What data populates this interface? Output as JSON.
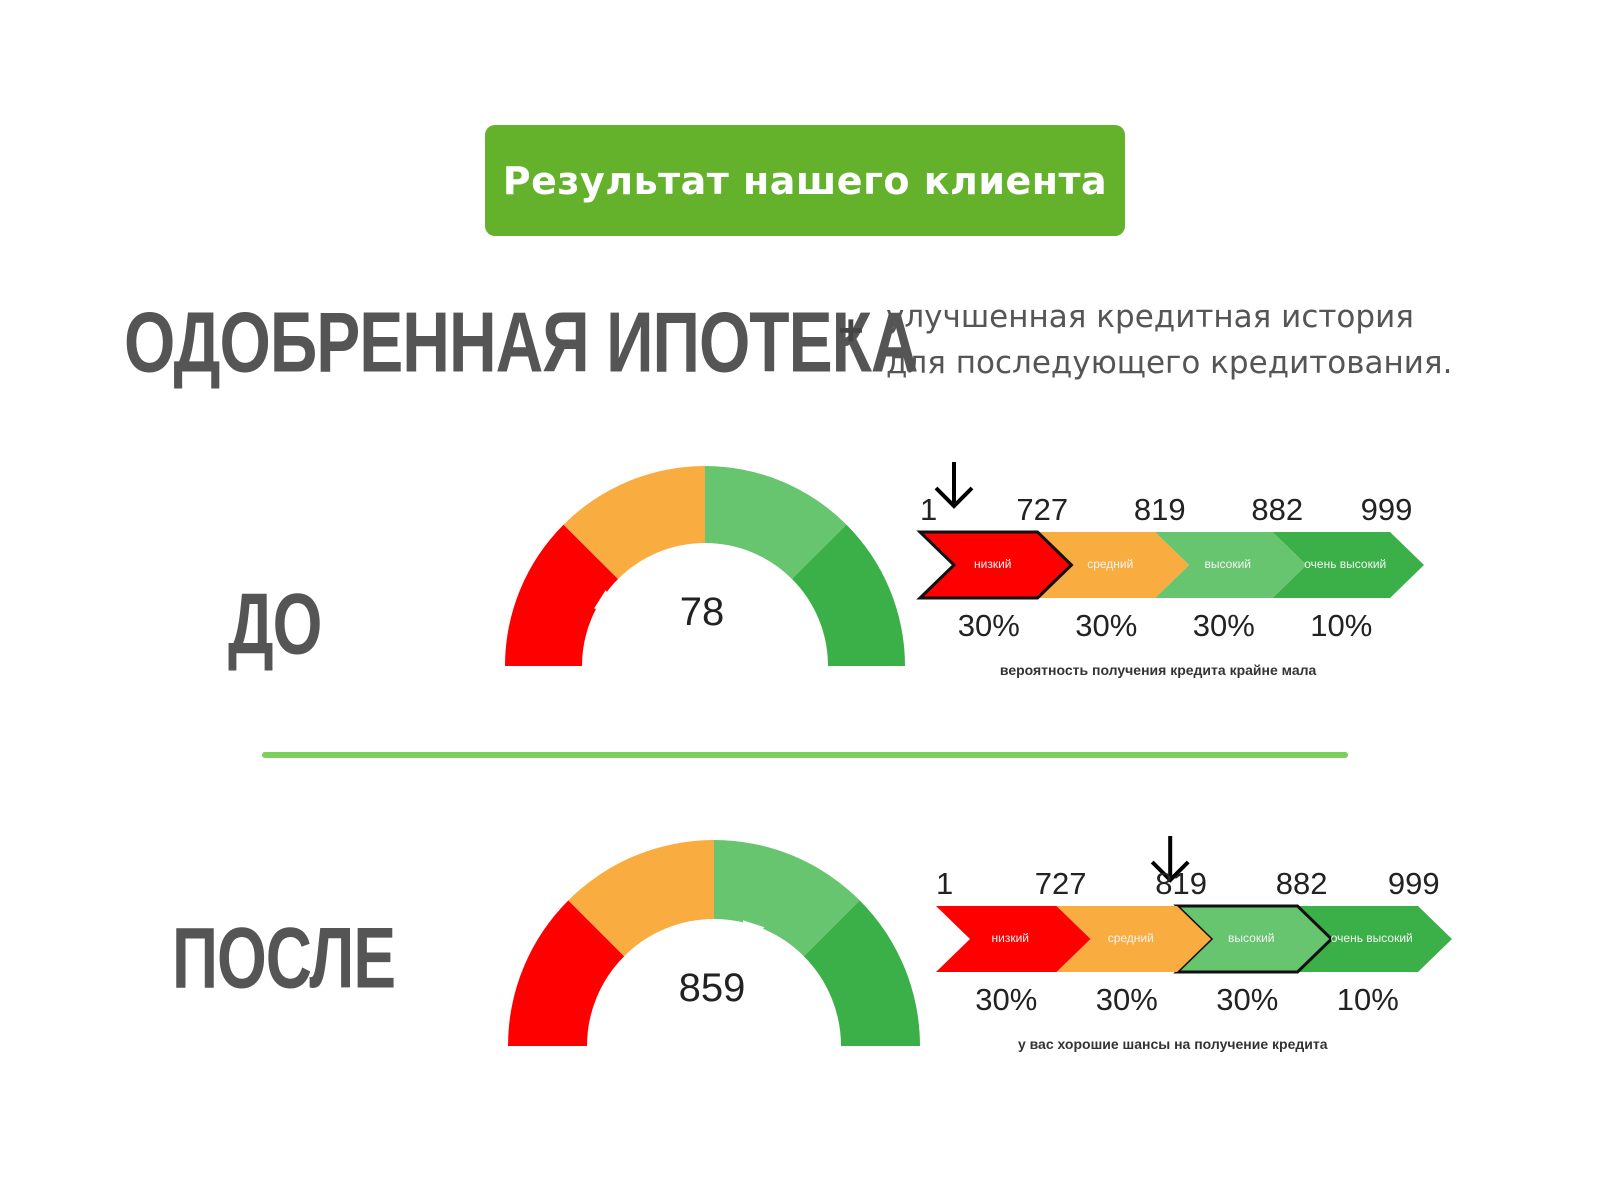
{
  "badge": {
    "label": "Результат нашего клиента"
  },
  "headline": {
    "main": "ОДОБРЕННАЯ ИПОТЕКА",
    "plus": "+",
    "sub_line1": "улучшенная кредитная история",
    "sub_line2": "для последующего кредитования."
  },
  "before": {
    "label": "ДО",
    "score": "78",
    "ticks": [
      "1",
      "727",
      "819",
      "882",
      "999"
    ],
    "segments": [
      "низкий",
      "средний",
      "высокий",
      "очень высокий"
    ],
    "percents": [
      "30%",
      "30%",
      "30%",
      "10%"
    ],
    "note": "вероятность получения кредита крайне мала",
    "active_segment": 0,
    "pointer_fraction": 0.2
  },
  "after": {
    "label": "ПОСЛЕ",
    "score": "859",
    "ticks": [
      "1",
      "727",
      "819",
      "882",
      "999"
    ],
    "segments": [
      "низкий",
      "средний",
      "высокий",
      "очень высокий"
    ],
    "percents": [
      "30%",
      "30%",
      "30%",
      "10%"
    ],
    "note": "у вас хорошие шансы на получение кредита",
    "active_segment": 2,
    "pointer_fraction": 0.6
  },
  "colors": {
    "badge": "#64b22c",
    "red": "#ff0000",
    "orange": "#f9ad40",
    "light_green": "#67c46f",
    "green": "#3bb049",
    "divider": "#7dcf5c",
    "text_gray": "#555555"
  },
  "icons": {
    "pointer": "arrow-down-icon"
  }
}
